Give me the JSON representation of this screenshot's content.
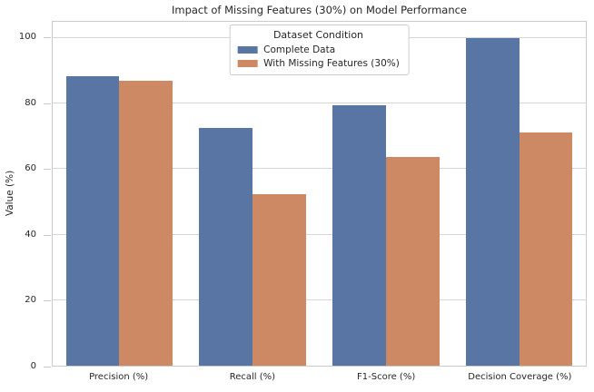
{
  "chart_data": {
    "type": "bar",
    "title": "Impact of Missing Features (30%) on Model Performance",
    "xlabel": "",
    "ylabel": "Value (%)",
    "categories": [
      "Precision (%)",
      "Recall (%)",
      "F1-Score (%)",
      "Decision Coverage (%)"
    ],
    "series": [
      {
        "name": "Complete Data",
        "color": "#5875A4",
        "values": [
          88.5,
          72.5,
          79.4,
          100.0
        ]
      },
      {
        "name": "With Missing Features (30%)",
        "color": "#CC8963",
        "values": [
          87.0,
          52.3,
          63.6,
          71.3
        ]
      }
    ],
    "yticks": [
      0,
      20,
      40,
      60,
      80,
      100
    ],
    "ylim": [
      0,
      105
    ],
    "bar_fraction_of_slot": 0.4,
    "grid": true,
    "legend": {
      "title": "Dataset Condition",
      "position": "upper center"
    },
    "colors": {
      "grid": "#d6d6d6",
      "spine": "#cbcbcb",
      "text": "#262626",
      "background": "#ffffff"
    }
  }
}
